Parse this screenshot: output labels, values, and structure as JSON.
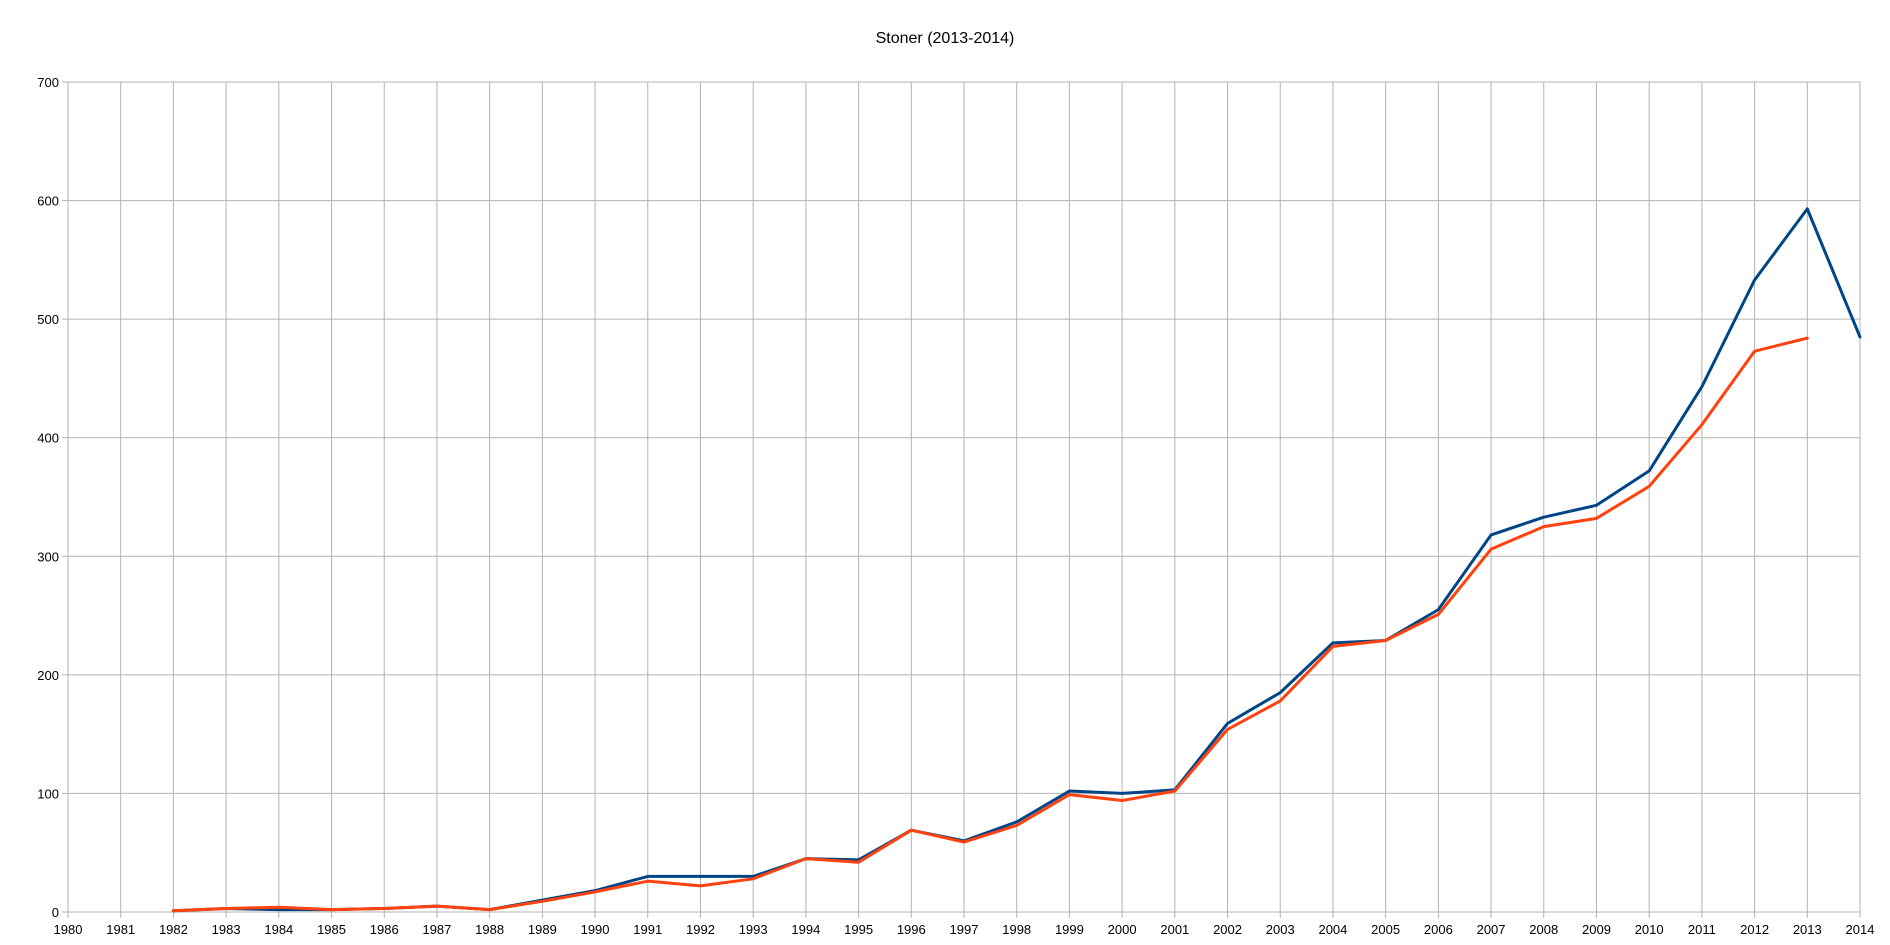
{
  "chart_data": {
    "type": "line",
    "title": "Stoner (2013-2014)",
    "xlabel": "",
    "ylabel": "",
    "x": [
      1980,
      1981,
      1982,
      1983,
      1984,
      1985,
      1986,
      1987,
      1988,
      1989,
      1990,
      1991,
      1992,
      1993,
      1994,
      1995,
      1996,
      1997,
      1998,
      1999,
      2000,
      2001,
      2002,
      2003,
      2004,
      2005,
      2006,
      2007,
      2008,
      2009,
      2010,
      2011,
      2012,
      2013,
      2014
    ],
    "xlim": [
      1980,
      2014
    ],
    "ylim": [
      0,
      700
    ],
    "yticks": [
      0,
      100,
      200,
      300,
      400,
      500,
      600,
      700
    ],
    "grid": true,
    "legend": "none",
    "series": [
      {
        "color": "#004586",
        "values": [
          null,
          null,
          1,
          3,
          2,
          2,
          3,
          5,
          2,
          10,
          18,
          30,
          30,
          30,
          45,
          44,
          69,
          60,
          76,
          102,
          100,
          103,
          159,
          185,
          227,
          229,
          255,
          318,
          333,
          343,
          372,
          443,
          533,
          593,
          485
        ]
      },
      {
        "color": "#ff420e",
        "values": [
          null,
          null,
          1,
          3,
          4,
          2,
          3,
          5,
          2,
          9,
          17,
          26,
          22,
          28,
          45,
          42,
          69,
          59,
          73,
          99,
          94,
          102,
          154,
          178,
          224,
          229,
          251,
          306,
          325,
          332,
          359,
          411,
          473,
          484,
          null
        ]
      }
    ]
  }
}
